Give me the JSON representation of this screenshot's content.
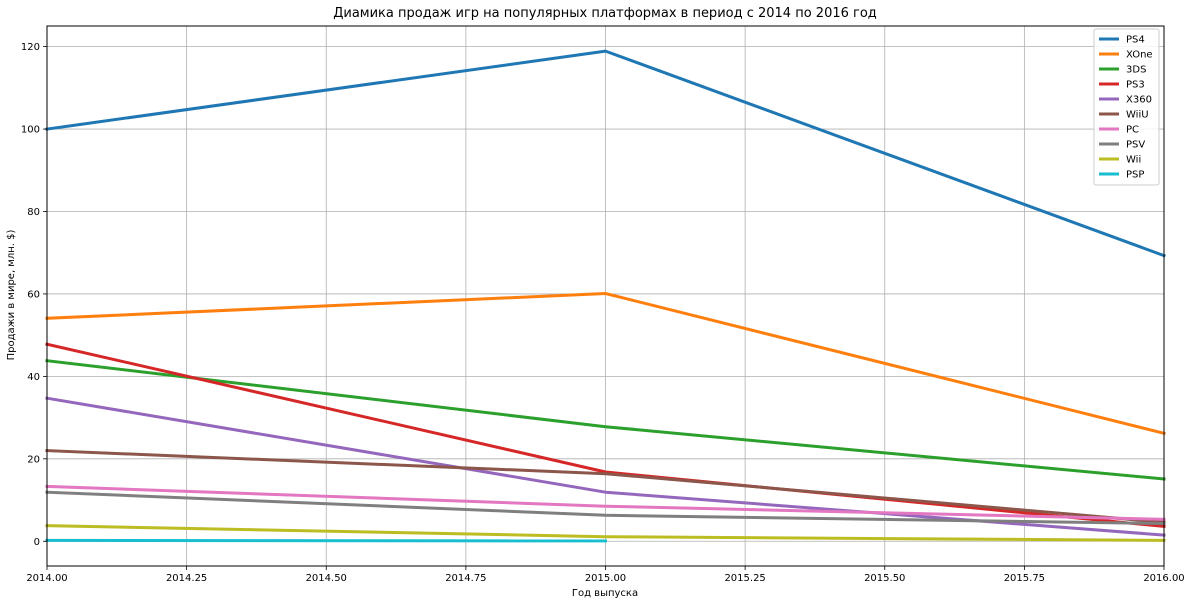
{
  "chart_data": {
    "type": "line",
    "title": "Диамика продаж игр на популярных платформах в период с 2014 по 2016 год",
    "xlabel": "Год выпуска",
    "ylabel": "Продажи в мире, млн. $)",
    "xlim": [
      2014.0,
      2016.0
    ],
    "ylim": [
      -6,
      125
    ],
    "xticks": [
      "2014.00",
      "2014.25",
      "2014.50",
      "2014.75",
      "2015.00",
      "2015.25",
      "2015.50",
      "2015.75",
      "2016.00"
    ],
    "yticks": [
      "0",
      "20",
      "40",
      "60",
      "80",
      "100",
      "120"
    ],
    "grid": true,
    "legend_position": "top-right",
    "series": [
      {
        "name": "PS4",
        "color": "#1f77b4",
        "x": [
          2014,
          2015,
          2016
        ],
        "values": [
          100.0,
          118.9,
          69.3
        ]
      },
      {
        "name": "XOne",
        "color": "#ff7f0e",
        "x": [
          2014,
          2015,
          2016
        ],
        "values": [
          54.1,
          60.1,
          26.2
        ]
      },
      {
        "name": "3DS",
        "color": "#2ca02c",
        "x": [
          2014,
          2015,
          2016
        ],
        "values": [
          43.8,
          27.8,
          15.1
        ]
      },
      {
        "name": "PS3",
        "color": "#d62728",
        "x": [
          2014,
          2015,
          2016
        ],
        "values": [
          47.8,
          16.8,
          3.6
        ]
      },
      {
        "name": "X360",
        "color": "#9467bd",
        "x": [
          2014,
          2015,
          2016
        ],
        "values": [
          34.7,
          11.9,
          1.5
        ]
      },
      {
        "name": "WiiU",
        "color": "#8c564b",
        "x": [
          2014,
          2015,
          2016
        ],
        "values": [
          22.0,
          16.4,
          4.6
        ]
      },
      {
        "name": "PC",
        "color": "#e377c2",
        "x": [
          2014,
          2015,
          2016
        ],
        "values": [
          13.3,
          8.5,
          5.3
        ]
      },
      {
        "name": "PSV",
        "color": "#7f7f7f",
        "x": [
          2014,
          2015,
          2016
        ],
        "values": [
          11.9,
          6.3,
          4.3
        ]
      },
      {
        "name": "Wii",
        "color": "#bcbd22",
        "x": [
          2014,
          2015,
          2016
        ],
        "values": [
          3.8,
          1.1,
          0.2
        ]
      },
      {
        "name": "PSP",
        "color": "#17becf",
        "x": [
          2014,
          2015
        ],
        "values": [
          0.2,
          0.1
        ]
      }
    ]
  }
}
